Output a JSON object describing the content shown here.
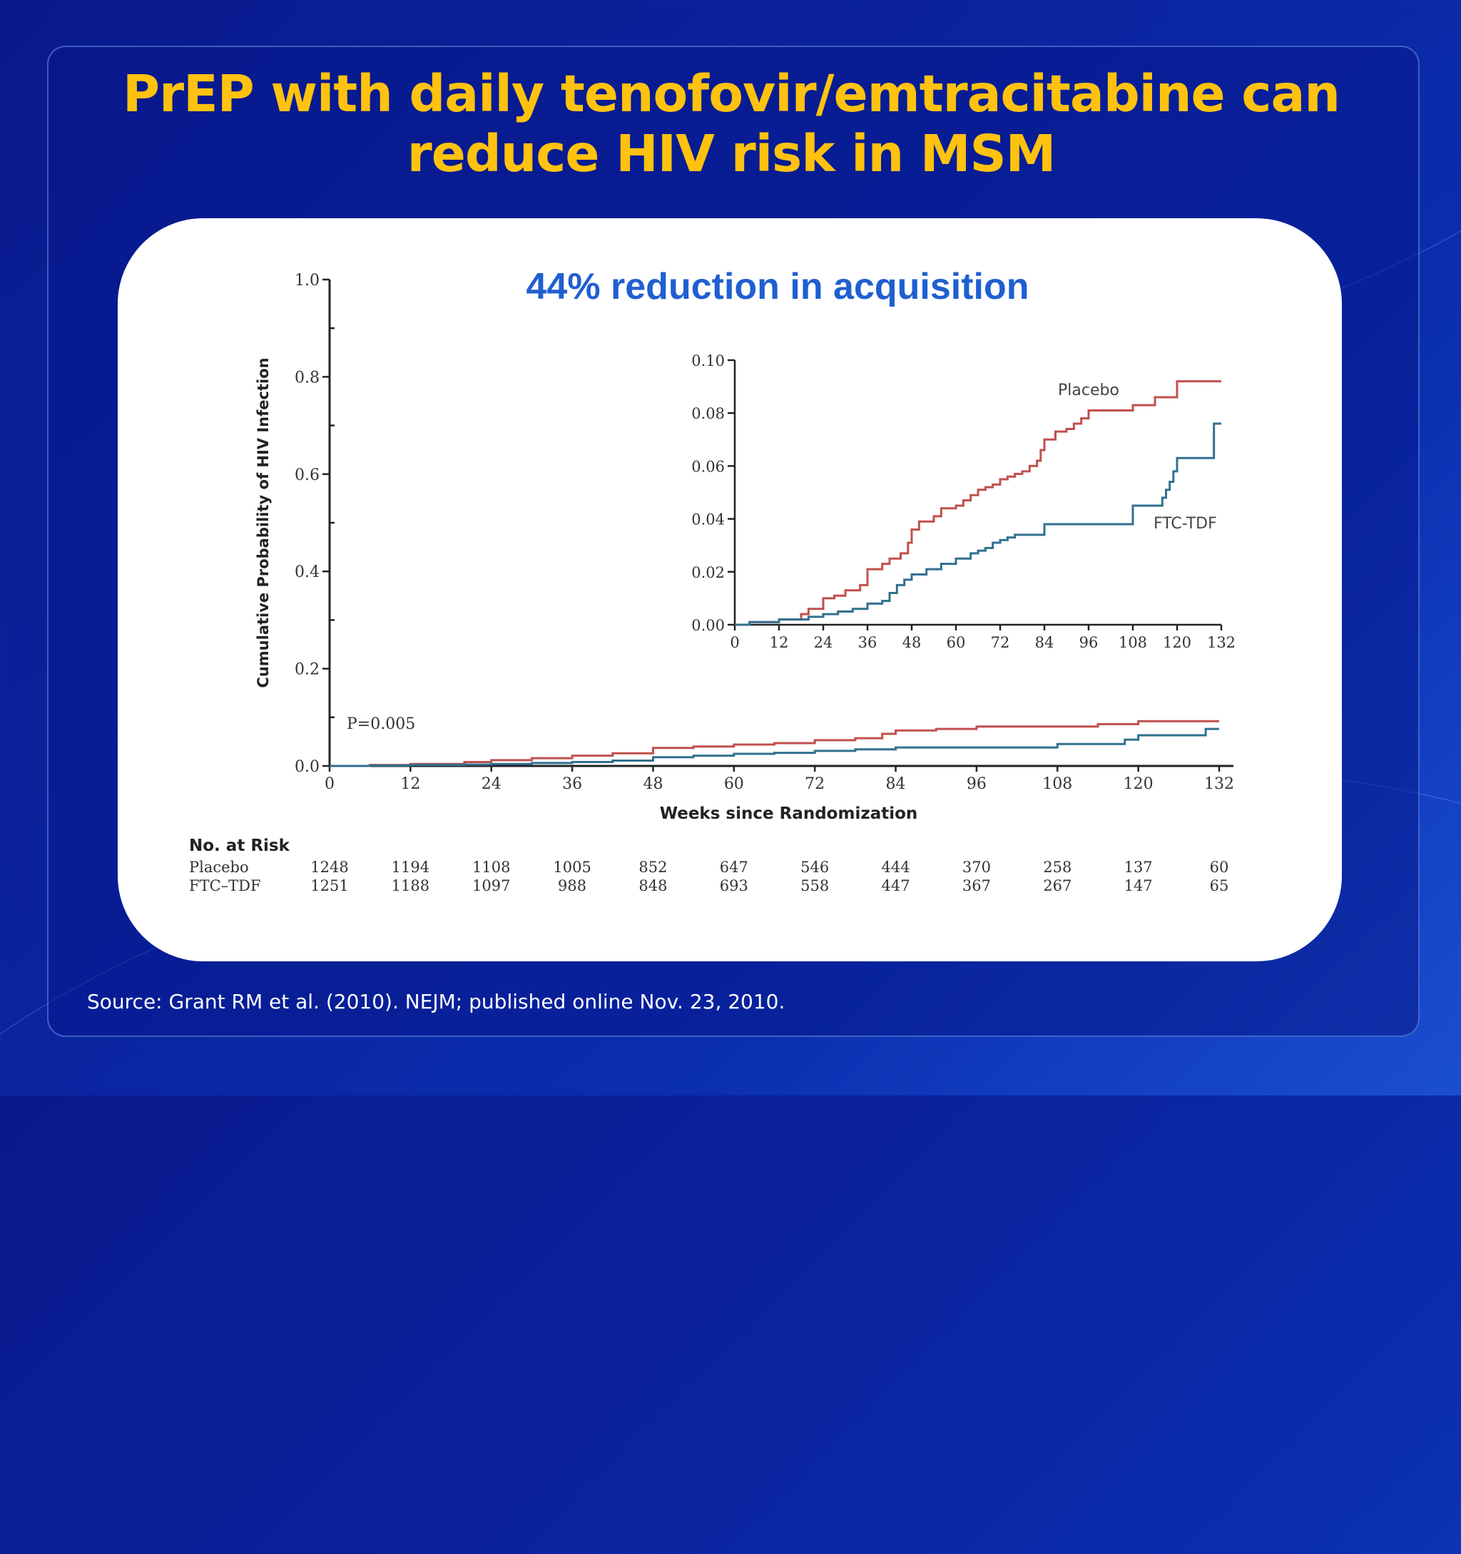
{
  "slide": {
    "title_line1": "PrEP with daily tenofovir/emtracitabine can",
    "title_line2": "reduce HIV risk in MSM",
    "subtitle": "44% reduction in acquisition",
    "source": "Source: Grant RM et al. (2010). NEJM; published online Nov. 23, 2010."
  },
  "colors": {
    "title": "#ffc20e",
    "subtitle": "#1f5fd0",
    "placebo": "#c0504d",
    "ftc_tdf": "#31708f"
  },
  "chart_data": [
    {
      "type": "line",
      "title": "",
      "xlabel": "Weeks since Randomization",
      "ylabel": "Cumulative Probability of HIV Infection",
      "xlim": [
        0,
        132
      ],
      "ylim": [
        0.0,
        1.0
      ],
      "xticks": [
        0,
        12,
        24,
        36,
        48,
        60,
        72,
        84,
        96,
        108,
        120,
        132
      ],
      "yticks": [
        "0.0",
        "0.2",
        "0.4",
        "0.6",
        "0.8",
        "1.0"
      ],
      "annotation": "P=0.005",
      "series": [
        {
          "name": "Placebo",
          "x": [
            0,
            6,
            12,
            20,
            24,
            30,
            36,
            42,
            48,
            54,
            60,
            66,
            72,
            78,
            82,
            84,
            90,
            96,
            104,
            108,
            114,
            120,
            126,
            132
          ],
          "y": [
            0,
            0.002,
            0.004,
            0.008,
            0.012,
            0.016,
            0.021,
            0.026,
            0.037,
            0.04,
            0.044,
            0.047,
            0.053,
            0.057,
            0.066,
            0.073,
            0.076,
            0.081,
            0.081,
            0.081,
            0.086,
            0.092,
            0.092,
            0.092
          ]
        },
        {
          "name": "FTC-TDF",
          "x": [
            0,
            6,
            12,
            20,
            24,
            30,
            36,
            42,
            48,
            54,
            60,
            66,
            72,
            78,
            84,
            90,
            96,
            104,
            108,
            114,
            118,
            120,
            126,
            130,
            132
          ],
          "y": [
            0,
            0.001,
            0.002,
            0.003,
            0.004,
            0.006,
            0.008,
            0.011,
            0.018,
            0.021,
            0.025,
            0.027,
            0.031,
            0.034,
            0.038,
            0.038,
            0.038,
            0.038,
            0.045,
            0.045,
            0.054,
            0.063,
            0.063,
            0.076,
            0.076
          ]
        }
      ]
    },
    {
      "type": "line",
      "title": "",
      "xlim": [
        0,
        132
      ],
      "ylim": [
        0.0,
        0.1
      ],
      "xticks": [
        0,
        12,
        24,
        36,
        48,
        60,
        72,
        84,
        96,
        108,
        120,
        132
      ],
      "yticks": [
        "0.00",
        "0.02",
        "0.04",
        "0.06",
        "0.08",
        "0.10"
      ],
      "series": [
        {
          "name": "Placebo",
          "x": [
            0,
            4,
            12,
            18,
            20,
            24,
            27,
            30,
            34,
            36,
            40,
            42,
            45,
            47,
            48,
            50,
            54,
            56,
            60,
            62,
            64,
            66,
            68,
            70,
            72,
            74,
            76,
            78,
            80,
            82,
            83,
            84,
            87,
            90,
            92,
            94,
            96,
            100,
            104,
            106,
            108,
            112,
            114,
            116,
            118,
            120,
            124,
            128,
            132
          ],
          "y": [
            0,
            0.001,
            0.002,
            0.004,
            0.006,
            0.01,
            0.011,
            0.013,
            0.015,
            0.021,
            0.023,
            0.025,
            0.027,
            0.031,
            0.036,
            0.039,
            0.041,
            0.044,
            0.045,
            0.047,
            0.049,
            0.051,
            0.052,
            0.053,
            0.055,
            0.056,
            0.057,
            0.058,
            0.06,
            0.062,
            0.066,
            0.07,
            0.073,
            0.074,
            0.076,
            0.078,
            0.081,
            0.081,
            0.081,
            0.081,
            0.083,
            0.083,
            0.086,
            0.086,
            0.086,
            0.092,
            0.092,
            0.092,
            0.092
          ]
        },
        {
          "name": "FTC-TDF",
          "x": [
            0,
            4,
            12,
            20,
            24,
            28,
            32,
            36,
            40,
            42,
            44,
            46,
            48,
            52,
            56,
            60,
            64,
            66,
            68,
            70,
            72,
            74,
            76,
            78,
            84,
            90,
            96,
            100,
            104,
            106,
            108,
            114,
            116,
            117,
            118,
            119,
            120,
            124,
            128,
            130,
            132
          ],
          "y": [
            0,
            0.001,
            0.002,
            0.003,
            0.004,
            0.005,
            0.006,
            0.008,
            0.009,
            0.012,
            0.015,
            0.017,
            0.019,
            0.021,
            0.023,
            0.025,
            0.027,
            0.028,
            0.029,
            0.031,
            0.032,
            0.033,
            0.034,
            0.034,
            0.038,
            0.038,
            0.038,
            0.038,
            0.038,
            0.038,
            0.045,
            0.045,
            0.048,
            0.051,
            0.054,
            0.058,
            0.063,
            0.063,
            0.063,
            0.076,
            0.076
          ]
        }
      ]
    }
  ],
  "risk_table": {
    "header": "No. at Risk",
    "rows": [
      {
        "label": "Placebo",
        "values": [
          "1248",
          "1194",
          "1108",
          "1005",
          "852",
          "647",
          "546",
          "444",
          "370",
          "258",
          "137",
          "60"
        ]
      },
      {
        "label": "FTC–TDF",
        "values": [
          "1251",
          "1188",
          "1097",
          "988",
          "848",
          "693",
          "558",
          "447",
          "367",
          "267",
          "147",
          "65"
        ]
      }
    ]
  }
}
